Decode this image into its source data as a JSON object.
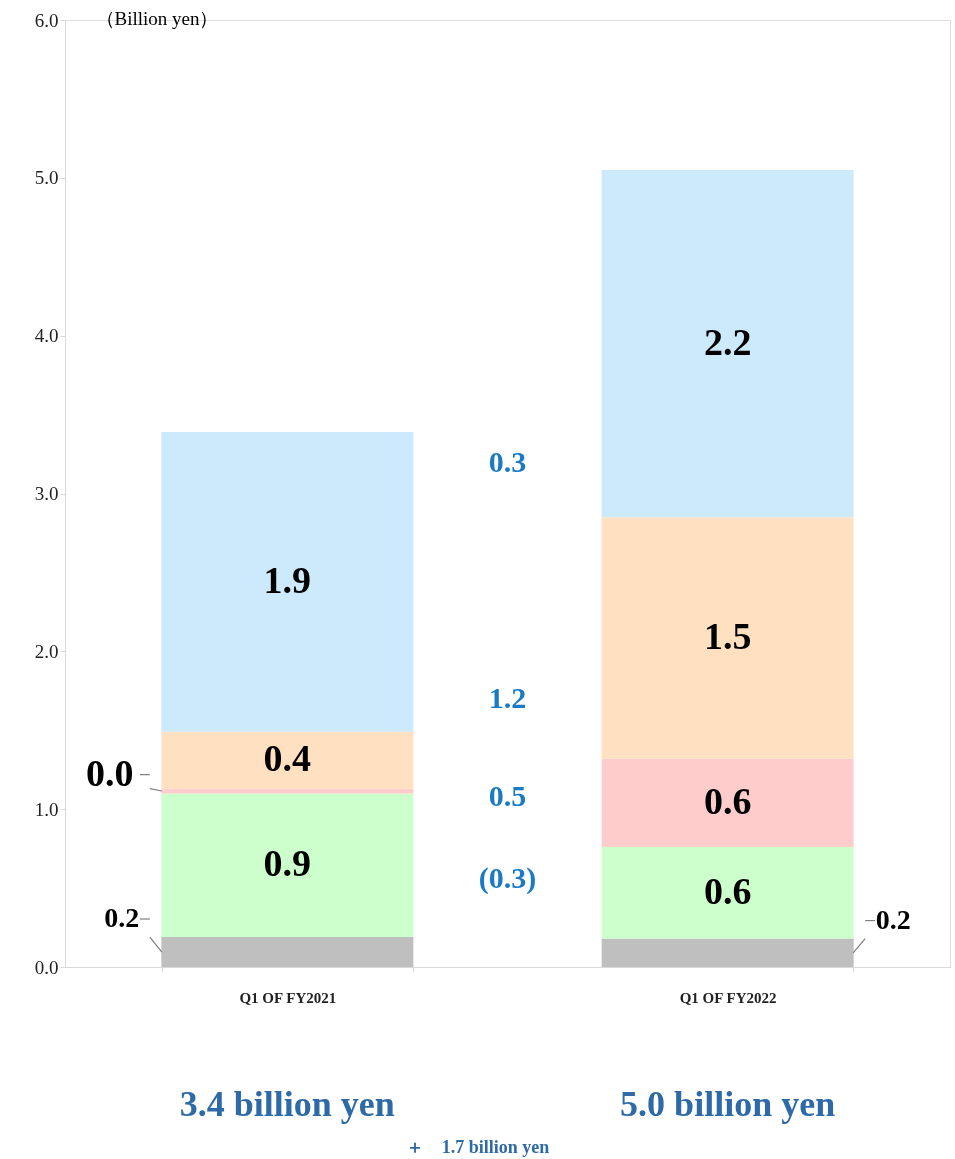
{
  "chart_data": {
    "type": "bar",
    "stacked": true,
    "categories": [
      "Q1 OF FY2021",
      "Q1 OF FY2022"
    ],
    "ylabel": "（Billion yen）",
    "ylim": [
      0,
      6
    ],
    "yticks": [
      {
        "value": 0,
        "label": "0.0"
      },
      {
        "value": 1,
        "label": "1.0"
      },
      {
        "value": 2,
        "label": "2.0"
      },
      {
        "value": 3,
        "label": "3.0"
      },
      {
        "value": 4,
        "label": "4.0"
      },
      {
        "value": 5,
        "label": "5.0"
      },
      {
        "value": 6,
        "label": "6.0"
      }
    ],
    "grid": false,
    "series": [
      {
        "color": "#bfbfbf",
        "values": [
          0.19,
          0.18
        ],
        "value_labels": [
          "0.2",
          "0.2"
        ]
      },
      {
        "color": "#ccffcc",
        "values": [
          0.91,
          0.58
        ],
        "value_labels": [
          "0.9",
          "0.6"
        ]
      },
      {
        "color": "#ffcccc",
        "values": [
          0.03,
          0.56
        ],
        "value_labels": [
          "0.0",
          "0.6"
        ]
      },
      {
        "color": "#ffe0c0",
        "values": [
          0.36,
          1.53
        ],
        "value_labels": [
          "0.4",
          "1.5"
        ]
      },
      {
        "color": "#cdeafc",
        "values": [
          1.9,
          2.2
        ],
        "value_labels": [
          "1.9",
          "2.2"
        ]
      }
    ],
    "annotations": [
      "(0.3)",
      "0.5",
      "1.2",
      "0.3",
      "3.4 billion yen",
      "5.0 billion yen",
      "＋　1.7 billion yen"
    ]
  }
}
